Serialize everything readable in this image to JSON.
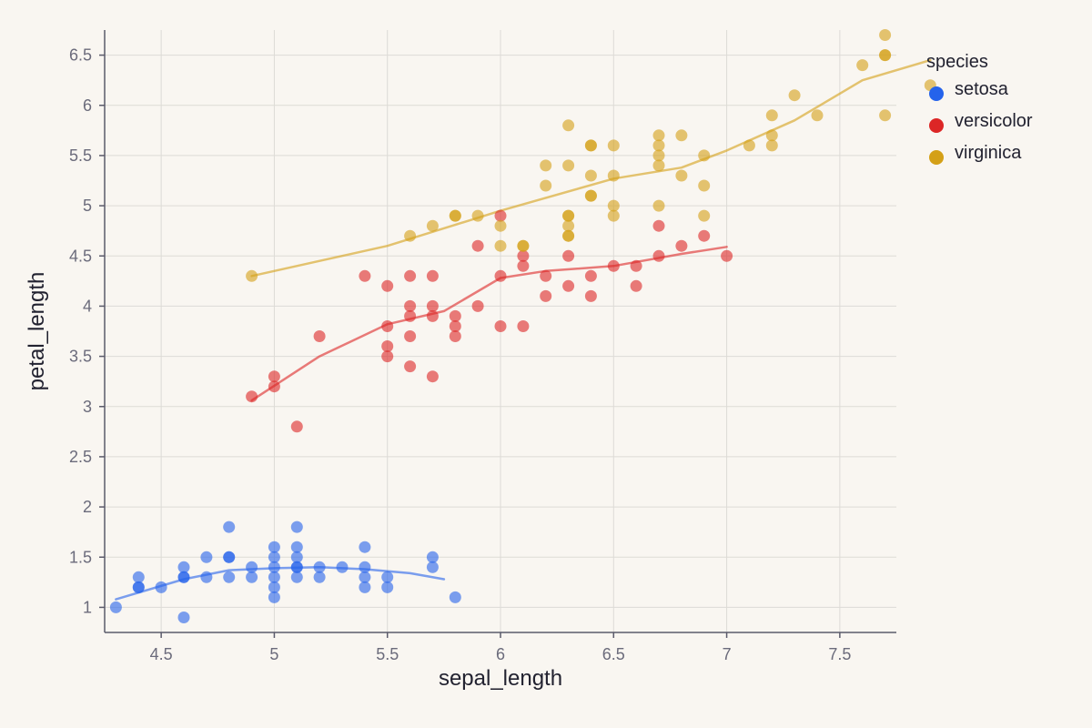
{
  "chart_data": {
    "type": "scatter",
    "title": "",
    "xlabel": "sepal_length",
    "ylabel": "petal_length",
    "xlim": [
      4.25,
      7.75
    ],
    "ylim": [
      0.75,
      6.75
    ],
    "x_ticks": [
      "4.5",
      "5",
      "5.5",
      "6",
      "6.5",
      "7",
      "7.5"
    ],
    "y_ticks": [
      "1",
      "1.5",
      "2",
      "2.5",
      "3",
      "3.5",
      "4",
      "4.5",
      "5",
      "5.5",
      "6",
      "6.5"
    ],
    "grid": true,
    "legend": {
      "title": "species",
      "position": "right"
    },
    "series": [
      {
        "name": "setosa",
        "color": "#2563eb",
        "points": [
          [
            4.3,
            1.0
          ],
          [
            4.4,
            1.2
          ],
          [
            4.4,
            1.3
          ],
          [
            4.4,
            1.2
          ],
          [
            4.5,
            1.2
          ],
          [
            4.6,
            1.3
          ],
          [
            4.6,
            1.4
          ],
          [
            4.6,
            0.9
          ],
          [
            4.6,
            1.3
          ],
          [
            4.7,
            1.3
          ],
          [
            4.7,
            1.5
          ],
          [
            4.8,
            1.5
          ],
          [
            4.8,
            1.3
          ],
          [
            4.8,
            1.8
          ],
          [
            4.8,
            1.5
          ],
          [
            4.9,
            1.4
          ],
          [
            4.9,
            1.3
          ],
          [
            5.0,
            1.4
          ],
          [
            5.0,
            1.5
          ],
          [
            5.0,
            1.6
          ],
          [
            5.0,
            1.2
          ],
          [
            5.0,
            1.1
          ],
          [
            5.0,
            1.3
          ],
          [
            5.1,
            1.4
          ],
          [
            5.1,
            1.5
          ],
          [
            5.1,
            1.3
          ],
          [
            5.1,
            1.6
          ],
          [
            5.1,
            1.8
          ],
          [
            5.1,
            1.4
          ],
          [
            5.2,
            1.3
          ],
          [
            5.2,
            1.4
          ],
          [
            5.3,
            1.4
          ],
          [
            5.4,
            1.6
          ],
          [
            5.4,
            1.3
          ],
          [
            5.4,
            1.4
          ],
          [
            5.4,
            1.2
          ],
          [
            5.5,
            1.3
          ],
          [
            5.5,
            1.2
          ],
          [
            5.7,
            1.5
          ],
          [
            5.7,
            1.4
          ],
          [
            5.8,
            1.1
          ]
        ],
        "trend": [
          [
            4.3,
            1.08
          ],
          [
            4.6,
            1.28
          ],
          [
            4.8,
            1.37
          ],
          [
            5.0,
            1.39
          ],
          [
            5.2,
            1.4
          ],
          [
            5.4,
            1.38
          ],
          [
            5.6,
            1.34
          ],
          [
            5.75,
            1.28
          ]
        ]
      },
      {
        "name": "versicolor",
        "color": "#dc2626",
        "points": [
          [
            4.9,
            3.1
          ],
          [
            5.0,
            3.2
          ],
          [
            5.0,
            3.3
          ],
          [
            5.1,
            2.8
          ],
          [
            5.2,
            3.7
          ],
          [
            5.4,
            4.3
          ],
          [
            5.5,
            3.8
          ],
          [
            5.5,
            4.2
          ],
          [
            5.5,
            3.6
          ],
          [
            5.5,
            3.5
          ],
          [
            5.6,
            4.0
          ],
          [
            5.6,
            3.9
          ],
          [
            5.6,
            4.3
          ],
          [
            5.6,
            3.7
          ],
          [
            5.6,
            3.4
          ],
          [
            5.7,
            4.0
          ],
          [
            5.7,
            3.9
          ],
          [
            5.7,
            4.3
          ],
          [
            5.7,
            3.3
          ],
          [
            5.8,
            3.7
          ],
          [
            5.8,
            3.8
          ],
          [
            5.8,
            3.9
          ],
          [
            5.9,
            4.6
          ],
          [
            5.9,
            4.0
          ],
          [
            6.0,
            3.8
          ],
          [
            6.0,
            4.9
          ],
          [
            6.0,
            4.3
          ],
          [
            6.1,
            4.4
          ],
          [
            6.1,
            4.5
          ],
          [
            6.1,
            3.8
          ],
          [
            6.2,
            4.3
          ],
          [
            6.2,
            4.1
          ],
          [
            6.3,
            4.5
          ],
          [
            6.3,
            4.2
          ],
          [
            6.4,
            4.3
          ],
          [
            6.4,
            4.1
          ],
          [
            6.5,
            4.4
          ],
          [
            6.6,
            4.2
          ],
          [
            6.6,
            4.4
          ],
          [
            6.7,
            4.8
          ],
          [
            6.7,
            4.5
          ],
          [
            6.8,
            4.6
          ],
          [
            6.9,
            4.7
          ],
          [
            7.0,
            4.5
          ]
        ],
        "trend": [
          [
            4.9,
            3.06
          ],
          [
            5.2,
            3.5
          ],
          [
            5.5,
            3.82
          ],
          [
            5.75,
            3.95
          ],
          [
            6.0,
            4.28
          ],
          [
            6.2,
            4.35
          ],
          [
            6.5,
            4.4
          ],
          [
            6.8,
            4.52
          ],
          [
            7.0,
            4.59
          ]
        ]
      },
      {
        "name": "virginica",
        "color": "#d4a017",
        "points": [
          [
            4.9,
            4.3
          ],
          [
            5.6,
            4.7
          ],
          [
            5.7,
            4.8
          ],
          [
            5.8,
            4.9
          ],
          [
            5.8,
            4.9
          ],
          [
            5.9,
            4.9
          ],
          [
            6.0,
            4.8
          ],
          [
            6.0,
            4.6
          ],
          [
            6.1,
            4.6
          ],
          [
            6.1,
            4.6
          ],
          [
            6.2,
            5.4
          ],
          [
            6.2,
            5.2
          ],
          [
            6.3,
            4.7
          ],
          [
            6.3,
            5.4
          ],
          [
            6.3,
            4.9
          ],
          [
            6.3,
            4.9
          ],
          [
            6.3,
            4.7
          ],
          [
            6.3,
            4.8
          ],
          [
            6.3,
            5.8
          ],
          [
            6.4,
            5.6
          ],
          [
            6.4,
            5.6
          ],
          [
            6.4,
            5.3
          ],
          [
            6.4,
            5.1
          ],
          [
            6.4,
            5.1
          ],
          [
            6.5,
            5.3
          ],
          [
            6.5,
            5.0
          ],
          [
            6.5,
            4.9
          ],
          [
            6.5,
            5.6
          ],
          [
            6.7,
            5.7
          ],
          [
            6.7,
            5.5
          ],
          [
            6.7,
            5.6
          ],
          [
            6.7,
            5.4
          ],
          [
            6.7,
            5.0
          ],
          [
            6.8,
            5.7
          ],
          [
            6.8,
            5.3
          ],
          [
            6.9,
            5.5
          ],
          [
            6.9,
            5.2
          ],
          [
            6.9,
            4.9
          ],
          [
            7.1,
            5.6
          ],
          [
            7.2,
            5.7
          ],
          [
            7.2,
            5.9
          ],
          [
            7.2,
            5.6
          ],
          [
            7.3,
            6.1
          ],
          [
            7.4,
            5.9
          ],
          [
            7.6,
            6.4
          ],
          [
            7.7,
            6.7
          ],
          [
            7.7,
            6.5
          ],
          [
            7.7,
            6.5
          ],
          [
            7.7,
            5.9
          ],
          [
            7.9,
            6.2
          ]
        ],
        "trend": [
          [
            4.9,
            4.3
          ],
          [
            5.5,
            4.6
          ],
          [
            6.0,
            4.95
          ],
          [
            6.5,
            5.27
          ],
          [
            6.8,
            5.38
          ],
          [
            7.0,
            5.55
          ],
          [
            7.3,
            5.85
          ],
          [
            7.6,
            6.25
          ],
          [
            7.9,
            6.45
          ]
        ]
      }
    ]
  }
}
